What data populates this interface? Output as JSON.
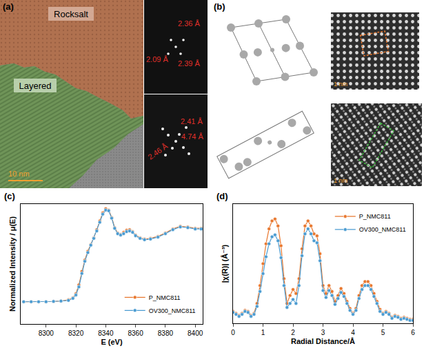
{
  "panels": {
    "a": {
      "letter": "(a)",
      "regions": [
        "Rocksalt",
        "Layered"
      ],
      "scale_bar": "10 nm",
      "fft_rocksalt": [
        "2.36 Å",
        "2.09 Å",
        "2.39 Å"
      ],
      "fft_layered": [
        "2.41 Å",
        "4.74 Å",
        "2.46 Å"
      ]
    },
    "b": {
      "letter": "(b)",
      "scale_bars": [
        "1 nm",
        "1 nm"
      ]
    }
  },
  "chart_data": [
    {
      "panel": "(c)",
      "type": "line",
      "x_label": "E (eV)",
      "y_label": "Normalized Intensity / μ(E)",
      "x": [
        8285,
        8290,
        8295,
        8300,
        8305,
        8310,
        8315,
        8318,
        8320,
        8322,
        8324,
        8326,
        8328,
        8330,
        8332,
        8334,
        8336,
        8338,
        8340,
        8342,
        8344,
        8346,
        8348,
        8350,
        8352,
        8354,
        8356,
        8358,
        8360,
        8363,
        8366,
        8370,
        8375,
        8380,
        8385,
        8390,
        8395,
        8400,
        8404
      ],
      "series": [
        {
          "name": "P_NMC811",
          "color": "#e8772e",
          "marker": "circle",
          "line_style": "solid",
          "values": [
            0,
            0,
            0,
            0,
            0.005,
            0.01,
            0.03,
            0.06,
            0.12,
            0.25,
            0.45,
            0.62,
            0.75,
            0.85,
            0.95,
            1.07,
            1.2,
            1.32,
            1.38,
            1.36,
            1.25,
            1.1,
            1.02,
            1.0,
            1.03,
            1.06,
            1.07,
            1.04,
            0.99,
            0.95,
            0.93,
            0.94,
            0.97,
            1.02,
            1.08,
            1.12,
            1.11,
            1.09,
            1.09
          ]
        },
        {
          "name": "OV300_NMC811",
          "color": "#4a9bd1",
          "marker": "circle",
          "line_style": "solid",
          "values": [
            0,
            0,
            0,
            0,
            0.005,
            0.01,
            0.02,
            0.05,
            0.1,
            0.22,
            0.42,
            0.6,
            0.73,
            0.84,
            0.94,
            1.05,
            1.18,
            1.3,
            1.36,
            1.35,
            1.24,
            1.09,
            1.01,
            0.99,
            1.01,
            1.04,
            1.05,
            1.03,
            0.98,
            0.94,
            0.92,
            0.93,
            0.96,
            1.01,
            1.07,
            1.11,
            1.1,
            1.08,
            1.08
          ]
        }
      ],
      "xlim": [
        8283,
        8405
      ],
      "xticks": [
        8300,
        8320,
        8340,
        8360,
        8380,
        8400
      ],
      "ylim": [
        -0.33,
        1.45
      ],
      "tick_labels": "x",
      "grid": false,
      "legend": "lower right"
    },
    {
      "panel": "(d)",
      "type": "line",
      "x_label": "Radial Distance/Å",
      "y_label": "|χ(R)| (Å⁻³)",
      "x": [
        0,
        0.1,
        0.2,
        0.3,
        0.4,
        0.5,
        0.6,
        0.7,
        0.8,
        0.9,
        1,
        1.1,
        1.2,
        1.3,
        1.4,
        1.5,
        1.6,
        1.7,
        1.8,
        1.9,
        2,
        2.1,
        2.2,
        2.3,
        2.4,
        2.5,
        2.6,
        2.7,
        2.8,
        2.9,
        3,
        3.1,
        3.2,
        3.3,
        3.4,
        3.5,
        3.6,
        3.7,
        3.8,
        3.9,
        4,
        4.1,
        4.2,
        4.3,
        4.4,
        4.5,
        4.6,
        4.7,
        4.8,
        4.9,
        5,
        5.1,
        5.2,
        5.3,
        5.4,
        5.5,
        5.6,
        5.7,
        5.8,
        5.9,
        6
      ],
      "series": [
        {
          "name": "P_NMC811",
          "color": "#e8772e",
          "marker": "circle",
          "line_style": "solid",
          "values": [
            0.12,
            0.1,
            0.08,
            0.1,
            0.13,
            0.12,
            0.08,
            0.1,
            0.2,
            0.38,
            0.6,
            0.8,
            0.95,
            1.03,
            1.05,
            0.98,
            0.78,
            0.45,
            0.2,
            0.28,
            0.34,
            0.3,
            0.45,
            0.75,
            0.98,
            1.03,
            0.98,
            0.9,
            0.88,
            0.7,
            0.38,
            0.3,
            0.38,
            0.32,
            0.22,
            0.28,
            0.35,
            0.3,
            0.22,
            0.15,
            0.1,
            0.15,
            0.28,
            0.38,
            0.42,
            0.42,
            0.38,
            0.3,
            0.22,
            0.14,
            0.1,
            0.12,
            0.1,
            0.06,
            0.08,
            0.07,
            0.05,
            0.06,
            0.05,
            0.04,
            0.04
          ]
        },
        {
          "name": "OV300_NMC811",
          "color": "#4a9bd1",
          "marker": "circle",
          "line_style": "solid",
          "values": [
            0.11,
            0.09,
            0.07,
            0.09,
            0.12,
            0.11,
            0.07,
            0.09,
            0.17,
            0.32,
            0.5,
            0.67,
            0.8,
            0.87,
            0.89,
            0.83,
            0.66,
            0.38,
            0.16,
            0.2,
            0.24,
            0.2,
            0.38,
            0.68,
            0.9,
            0.95,
            0.9,
            0.83,
            0.81,
            0.63,
            0.33,
            0.26,
            0.33,
            0.28,
            0.19,
            0.25,
            0.31,
            0.27,
            0.2,
            0.13,
            0.09,
            0.13,
            0.25,
            0.34,
            0.38,
            0.38,
            0.34,
            0.27,
            0.2,
            0.12,
            0.09,
            0.11,
            0.09,
            0.05,
            0.07,
            0.06,
            0.04,
            0.05,
            0.04,
            0.03,
            0.03
          ]
        }
      ],
      "xlim": [
        0,
        6
      ],
      "xticks": [
        0,
        1,
        2,
        3,
        4,
        5,
        6
      ],
      "ylim": [
        0,
        1.2
      ],
      "tick_labels": "x",
      "grid": false,
      "legend": "upper right"
    }
  ]
}
